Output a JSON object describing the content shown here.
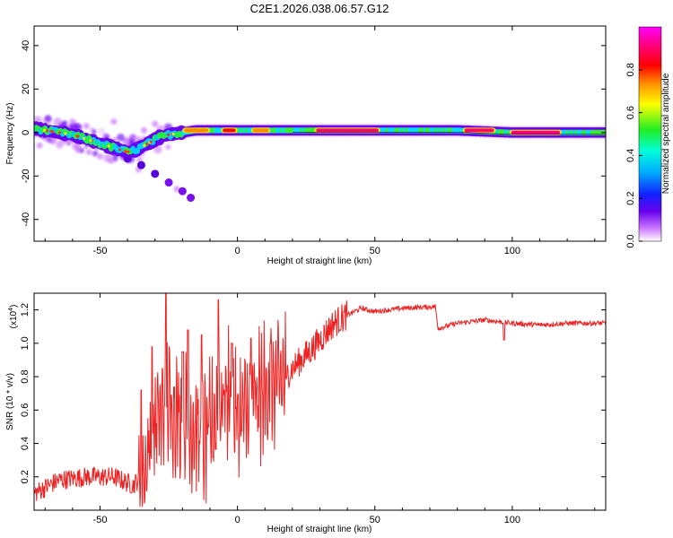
{
  "title": "C2E1.2026.038.06.57.G12",
  "chart_data": [
    {
      "type": "heatmap",
      "name": "spectrogram",
      "xlabel": "Height of straight line (km)",
      "ylabel": "Frequency (Hz)",
      "xlim": [
        -74,
        134
      ],
      "ylim": [
        -50,
        49
      ],
      "xticks": [
        -50,
        0,
        50,
        100
      ],
      "yticks": [
        40,
        20,
        0,
        -20,
        -40
      ],
      "colorbar": {
        "label": "Normalized spectral amplitude",
        "range": [
          0,
          1
        ],
        "ticks": [
          "0.0",
          "0.2",
          "0.4",
          "0.6",
          "0.8"
        ],
        "tick_values": [
          0.0,
          0.2,
          0.4,
          0.6,
          0.8
        ],
        "colors": [
          "#ffffff",
          "#cc77ff",
          "#3300dd",
          "#0088ff",
          "#00ffff",
          "#22ee22",
          "#ffff00",
          "#ff6600",
          "#ff0000",
          "#ff0088",
          "#ff00ff"
        ]
      },
      "ridge": [
        [
          -74,
          2
        ],
        [
          -70,
          1
        ],
        [
          -65,
          0
        ],
        [
          -60,
          -1
        ],
        [
          -55,
          -3
        ],
        [
          -50,
          -5
        ],
        [
          -45,
          -7
        ],
        [
          -40,
          -9
        ],
        [
          -37,
          -8
        ],
        [
          -34,
          -6
        ],
        [
          -31,
          -4
        ],
        [
          -28,
          -2
        ],
        [
          -25,
          -1
        ],
        [
          -20,
          0
        ],
        [
          -15,
          1
        ],
        [
          -10,
          1
        ],
        [
          -5,
          1
        ],
        [
          0,
          1
        ],
        [
          10,
          1
        ],
        [
          20,
          1
        ],
        [
          40,
          1
        ],
        [
          60,
          1
        ],
        [
          80,
          1
        ],
        [
          100,
          0
        ],
        [
          120,
          0
        ],
        [
          134,
          0
        ]
      ],
      "branch": [
        [
          -40,
          -12
        ],
        [
          -35,
          -15
        ],
        [
          -30,
          -19
        ],
        [
          -25,
          -23
        ],
        [
          -20,
          -27
        ],
        [
          -17,
          -30
        ]
      ],
      "scatter_low": [
        [
          -72,
          -6
        ],
        [
          -67,
          -4
        ],
        [
          -62,
          -3
        ],
        [
          -58,
          -8
        ],
        [
          -54,
          -9
        ],
        [
          -50,
          -11
        ],
        [
          -46,
          -13
        ],
        [
          -44,
          -8
        ],
        [
          -38,
          -2
        ],
        [
          -34,
          1
        ],
        [
          -30,
          4
        ],
        [
          -45,
          5
        ],
        [
          -55,
          3
        ],
        [
          -60,
          5
        ],
        [
          -36,
          -17
        ],
        [
          -22,
          -26
        ]
      ],
      "hot_segments": [
        [
          -20,
          -10,
          1,
          0.8
        ],
        [
          -6,
          0,
          1,
          0.85
        ],
        [
          5,
          12,
          1,
          0.8
        ],
        [
          28,
          52,
          1,
          0.98
        ],
        [
          82,
          94,
          1,
          0.95
        ],
        [
          99,
          118,
          0,
          0.98
        ]
      ]
    },
    {
      "type": "line",
      "name": "snr",
      "xlabel": "Height of straight line (km)",
      "ylabel": "SNR (10 * v/v)",
      "scale_label": "(x10",
      "scale_exp": "4",
      "xlim": [
        -74,
        134
      ],
      "ylim": [
        0,
        1.3
      ],
      "xticks": [
        -50,
        0,
        50,
        100
      ],
      "yticks": [
        0.2,
        0.4,
        0.6,
        0.8,
        1.0,
        1.2
      ],
      "ytick_labels": [
        "0.2",
        "0.4",
        "0.6",
        "0.8",
        "1.0",
        "1.2"
      ],
      "color": "#ee2222",
      "profile": [
        [
          -74,
          0.1
        ],
        [
          -65,
          0.18
        ],
        [
          -55,
          0.2
        ],
        [
          -45,
          0.2
        ],
        [
          -38,
          0.15
        ],
        [
          -34,
          0.22
        ],
        [
          -30,
          0.52
        ],
        [
          -25,
          0.65
        ],
        [
          -20,
          0.55
        ],
        [
          -12,
          0.42
        ],
        [
          -8,
          0.55
        ],
        [
          -4,
          0.72
        ],
        [
          0,
          0.55
        ],
        [
          5,
          0.62
        ],
        [
          10,
          0.72
        ],
        [
          15,
          0.76
        ],
        [
          20,
          0.85
        ],
        [
          25,
          0.93
        ],
        [
          30,
          1.02
        ],
        [
          35,
          1.12
        ],
        [
          40,
          1.17
        ],
        [
          45,
          1.21
        ],
        [
          50,
          1.19
        ],
        [
          60,
          1.21
        ],
        [
          72,
          1.22
        ],
        [
          73,
          1.09
        ],
        [
          80,
          1.12
        ],
        [
          90,
          1.14
        ],
        [
          100,
          1.12
        ],
        [
          110,
          1.11
        ],
        [
          120,
          1.12
        ],
        [
          134,
          1.12
        ]
      ],
      "spikes": [
        [
          -26,
          1.3
        ],
        [
          -7,
          1.26
        ],
        [
          -18,
          1.08
        ],
        [
          -31,
          0.98
        ],
        [
          -13,
          1.05
        ],
        [
          -2,
          1.0
        ],
        [
          5,
          1.03
        ],
        [
          -20,
          0.95
        ],
        [
          12,
          1.0
        ],
        [
          -35,
          0.72
        ]
      ],
      "notable": [
        {
          "x": 97,
          "y": 1.02
        }
      ]
    }
  ]
}
